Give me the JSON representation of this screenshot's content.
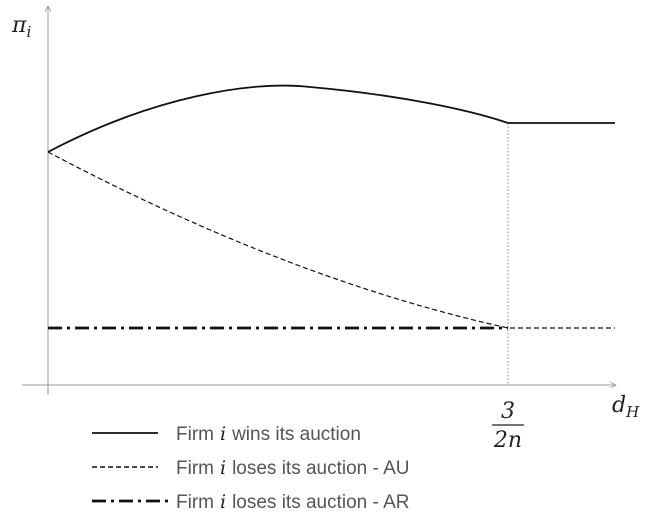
{
  "y_axis_label": {
    "symbol": "π",
    "sub": "i"
  },
  "x_axis_label": {
    "symbol": "d",
    "sub": "H"
  },
  "x_tick": {
    "numerator": "3",
    "denominator": "2n"
  },
  "legend": [
    {
      "text": "Firm",
      "var": "i",
      "rest": "wins its auction"
    },
    {
      "text": "Firm",
      "var": "i",
      "rest": "loses its auction - AU"
    },
    {
      "text": "Firm",
      "var": "i",
      "rest": "loses its auction - AR"
    }
  ]
}
